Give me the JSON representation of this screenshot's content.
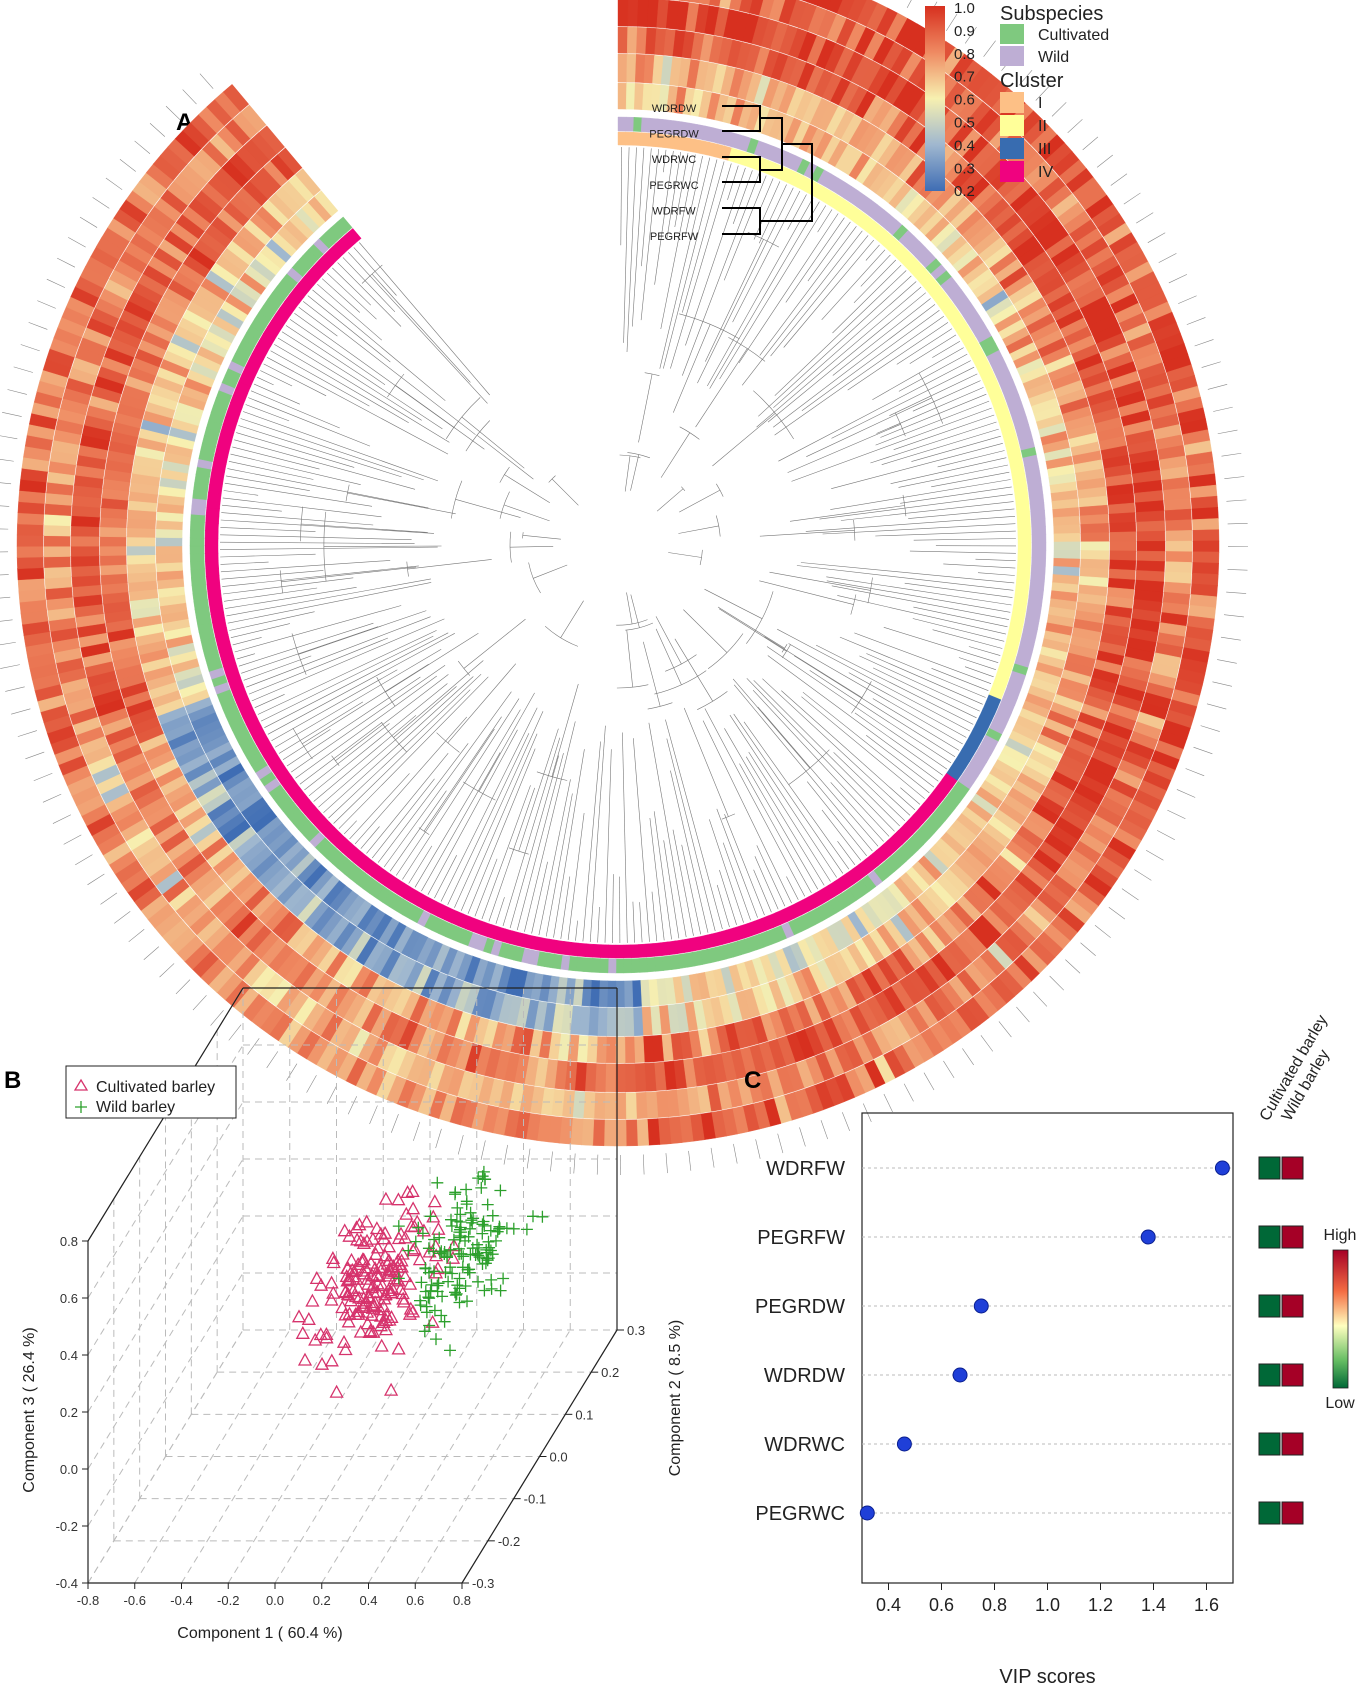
{
  "panels": {
    "a": {
      "letter": "A"
    },
    "b": {
      "letter": "B"
    },
    "c": {
      "letter": "C"
    }
  },
  "colors": {
    "cultivated": "#7fc97f",
    "wild": "#beaed4",
    "cluster_I": "#fdc086",
    "cluster_II": "#ffff99",
    "cluster_III": "#386cb0",
    "cluster_IV": "#f0027f",
    "heat_high": "#d7301f",
    "heat_low": "#4575b4",
    "pca_cultivated": "#d6336c",
    "pca_wild": "#2ca02c",
    "vip_point": "#1f3fd8",
    "vip_high": "#a50026",
    "vip_low": "#006837"
  },
  "chart_data": [
    {
      "panel": "A",
      "type": "heatmap",
      "title": "",
      "colorbar": {
        "ticks": [
          "1.0",
          "0.9",
          "0.8",
          "0.7",
          "0.6",
          "0.5",
          "0.4",
          "0.3",
          "0.2"
        ],
        "range": [
          0.2,
          1.0
        ]
      },
      "legend": {
        "subspecies_title": "Subspecies",
        "subspecies": [
          "Cultivated",
          "Wild"
        ],
        "cluster_title": "Cluster",
        "clusters": [
          "I",
          "II",
          "III",
          "IV"
        ]
      },
      "rings": [
        "WDRDW",
        "PEGRDW",
        "WDRWC",
        "PEGRWC",
        "WDRFW",
        "PEGRFW"
      ],
      "ring_dendrogram_order": [
        "WDRDW",
        "PEGRDW",
        "WDRWC",
        "PEGRWC",
        "WDRFW",
        "PEGRFW"
      ],
      "layout_note": "circular dendrogram of accessions with six trait heat rings, subspecies ring and cluster ring"
    },
    {
      "panel": "B",
      "type": "scatter",
      "title": "",
      "xlabel": "Component 1 ( 60.4 %)",
      "ylabel": "Component 3 ( 26.4 %)",
      "zlabel": "Component 2 ( 8.5 %)",
      "xlim": [
        -0.8,
        0.8
      ],
      "ylim": [
        -0.4,
        0.8
      ],
      "zlim": [
        -0.3,
        0.3
      ],
      "x_ticks": [
        "-0.8",
        "-0.6",
        "-0.4",
        "-0.2",
        "0.0",
        "0.2",
        "0.4",
        "0.6",
        "0.8"
      ],
      "y_ticks": [
        "-0.4",
        "-0.2",
        "0.0",
        "0.2",
        "0.4",
        "0.6",
        "0.8"
      ],
      "z_ticks": [
        "-0.3",
        "-0.2",
        "-0.1",
        "0.0",
        "0.1",
        "0.2",
        "0.3"
      ],
      "legend": [
        "Cultivated barley",
        "Wild barley"
      ],
      "legend_position": "top-left",
      "series": [
        {
          "name": "Cultivated barley",
          "marker": "triangle",
          "center": [
            0.1,
            0.2,
            0.0
          ],
          "spread": [
            0.18,
            0.12,
            0.06
          ],
          "n": 180
        },
        {
          "name": "Wild barley",
          "marker": "plus",
          "center": [
            0.45,
            0.3,
            0.0
          ],
          "spread": [
            0.14,
            0.12,
            0.06
          ],
          "n": 140
        }
      ]
    },
    {
      "panel": "C",
      "type": "scatter",
      "title": "",
      "xlabel": "VIP scores",
      "ylabel": "",
      "xlim": [
        0.3,
        1.7
      ],
      "x_ticks": [
        "0.4",
        "0.6",
        "0.8",
        "1.0",
        "1.2",
        "1.4",
        "1.6"
      ],
      "categories": [
        "WDRFW",
        "PEGRFW",
        "PEGRDW",
        "WDRDW",
        "WDRWC",
        "PEGRWC"
      ],
      "values": [
        1.66,
        1.38,
        0.75,
        0.67,
        0.46,
        0.32
      ],
      "group_labels": [
        "Cultivated barley",
        "Wild barley"
      ],
      "group_levels": [
        [
          "low",
          "high"
        ],
        [
          "low",
          "high"
        ],
        [
          "low",
          "high"
        ],
        [
          "low",
          "high"
        ],
        [
          "low",
          "high"
        ],
        [
          "low",
          "high"
        ]
      ],
      "color_scale": {
        "high_label": "High",
        "low_label": "Low"
      }
    }
  ]
}
